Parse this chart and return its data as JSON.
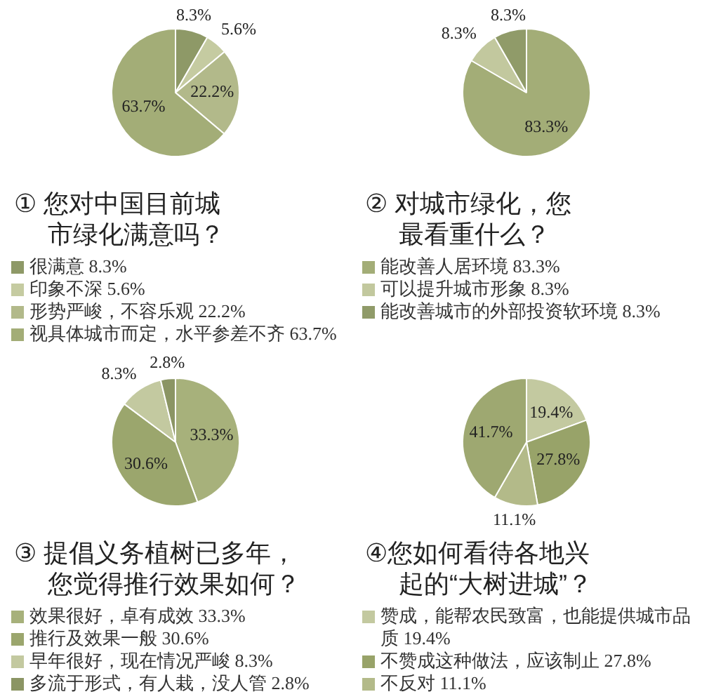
{
  "chart_data": [
    {
      "type": "pie",
      "title": "① 您对中国目前城市绿化满意吗？",
      "categories": [
        "很满意",
        "印象不深",
        "形势严峻，不容乐观",
        "视具体城市而定，水平参差不齐"
      ],
      "values": [
        8.3,
        5.6,
        22.2,
        63.7
      ],
      "value_labels": [
        "8.3%",
        "5.6%",
        "22.2%",
        "63.7%"
      ],
      "colors": [
        "#8e9967",
        "#c5cba1",
        "#b2b98a",
        "#a3ad77"
      ],
      "legend": "bottom"
    },
    {
      "type": "pie",
      "title": "② 对城市绿化，您最看重什么？",
      "categories": [
        "能改善人居环境",
        "可以提升城市形象",
        "能改善城市的外部投资软环境"
      ],
      "values": [
        83.3,
        8.3,
        8.3
      ],
      "value_labels": [
        "83.3%",
        "8.3%",
        "8.3%"
      ],
      "colors": [
        "#a3ad77",
        "#c2c89e",
        "#909b69"
      ],
      "legend": "bottom"
    },
    {
      "type": "pie",
      "title": "③ 提倡义务植树已多年，您觉得推行效果如何？",
      "categories": [
        "效果很好，卓有成效",
        "推行及效果一般",
        "早年很好，现在情况严峻",
        "多流于形式，有人栽，没人管"
      ],
      "values": [
        33.3,
        30.6,
        8.3,
        2.8
      ],
      "value_labels": [
        "33.3%",
        "30.6%",
        "8.3%",
        "2.8%"
      ],
      "colors": [
        "#a7b17b",
        "#9ba66d",
        "#c3c9a0",
        "#8b9564"
      ],
      "legend": "bottom"
    },
    {
      "type": "pie",
      "title": "④您如何看待各地兴起的“大树进城”？",
      "categories": [
        "赞成，能帮农民致富，也能提供城市品质",
        "不赞成这种做法，应该制止",
        "不反对",
        null
      ],
      "values": [
        19.4,
        27.8,
        11.1,
        41.7
      ],
      "value_labels": [
        "19.4%",
        "27.8%",
        "11.1%",
        "41.7%"
      ],
      "colors": [
        "#c3c9a0",
        "#98a369",
        "#b3ba89",
        "#9ea871"
      ],
      "legend": "bottom"
    }
  ]
}
